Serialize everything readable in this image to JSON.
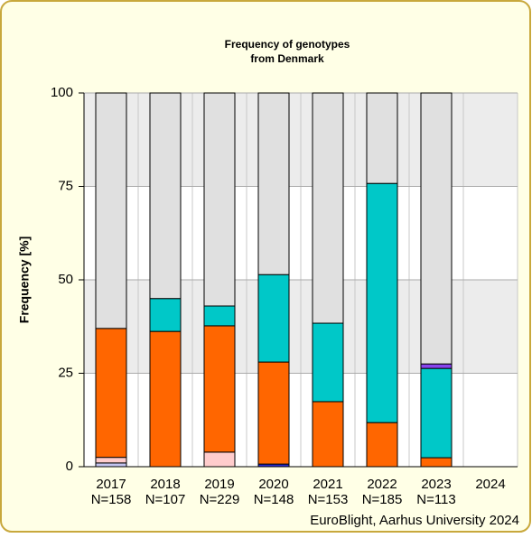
{
  "chart_data": {
    "type": "stacked-bar",
    "title": [
      "Frequency of genotypes",
      "from Denmark"
    ],
    "y_label": "Frequency [%]",
    "footer": "EuroBlight, Aarhus University 2024",
    "categories": [
      "2017",
      "2018",
      "2019",
      "2020",
      "2021",
      "2022",
      "2023",
      "2024"
    ],
    "sample_sizes": [
      "N=158",
      "N=107",
      "N=229",
      "N=148",
      "N=153",
      "N=185",
      "N=113",
      null
    ],
    "series": [
      {
        "color": "#2b2bcc",
        "values": [
          0,
          0,
          0,
          0.7,
          0,
          0,
          0,
          null
        ]
      },
      {
        "color": "#c4c4f0",
        "values": [
          1,
          0,
          0,
          0,
          0,
          0,
          0,
          null
        ]
      },
      {
        "color": "#ffcccc",
        "values": [
          1.5,
          0,
          3.9,
          0,
          0,
          0,
          0,
          null
        ]
      },
      {
        "color": "#ff6600",
        "values": [
          34.5,
          36.2,
          33.8,
          27.3,
          17.4,
          11.8,
          2.4,
          null
        ]
      },
      {
        "color": "#00c8c8",
        "values": [
          0,
          8.8,
          5.3,
          23.4,
          21,
          64,
          23.9,
          null
        ]
      },
      {
        "color": "#8844ee",
        "values": [
          0,
          0,
          0,
          0,
          0,
          0,
          1.2,
          null
        ]
      },
      {
        "color": "#e0e0e0",
        "values": [
          63,
          55,
          57,
          48.6,
          61.6,
          24.2,
          72.5,
          null
        ]
      }
    ],
    "ylim": [
      0,
      100
    ],
    "yticks": [
      0,
      25,
      50,
      75,
      100
    ],
    "grid": true
  }
}
